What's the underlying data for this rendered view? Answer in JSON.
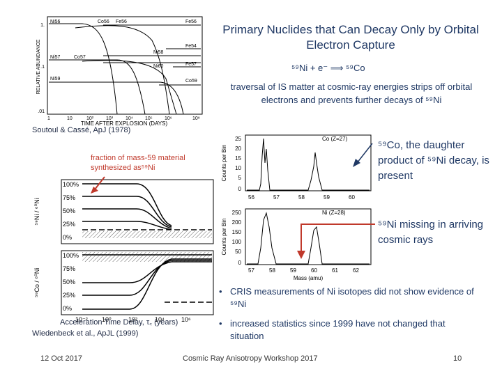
{
  "slide": {
    "title": "Primary Nuclides that Can Decay Only by Orbital Electron Capture",
    "reaction": "⁵⁹Ni + e⁻ ⟹ ⁵⁹Co",
    "description": "traversal of IS matter at cosmic-ray energies strips off orbital electrons and prevents further decays of ⁵⁹Ni",
    "ref_top": "Soutoul & Cassé, ApJ (1978)",
    "fraction_note": "fraction of mass-59 material synthesized as⁵⁹Ni",
    "co_note": "⁵⁹Co, the daughter product of ⁵⁹Ni decay, is present",
    "ni_note": "⁵⁹Ni missing in arriving cosmic rays",
    "bullets": [
      "CRIS measurements of Ni isotopes did not show evidence of ⁵⁹Ni",
      "increased statistics since 1999 have not changed that situation"
    ],
    "ref_bottom": "Wiedenbeck et al., ApJL (1999)",
    "footer": {
      "date": "12 Oct 2017",
      "event": "Cosmic Ray Anisotropy Workshop 2017",
      "page": "10"
    }
  },
  "abundance_plot": {
    "ylabel": "RELATIVE ABUNDANCE",
    "xlabel": "TIME AFTER EXPLOSION (DAYS)",
    "yticks": [
      "1.",
      ".1",
      ".01"
    ],
    "xticks": [
      "1",
      "10",
      "10²",
      "10³",
      "10⁴",
      "10⁵",
      "10⁶",
      "10⁸"
    ],
    "labels": [
      "Ni56",
      "Co56",
      "Fe56",
      "Fe54",
      "Ni57",
      "Co57",
      "Ni58",
      "Ni60",
      "Fe57",
      "Ni59",
      "Co59"
    ]
  },
  "delay_plot": {
    "xlabel": "Acceleration Time Delay, τ꜀ (years)",
    "ylabel_top": "⁵⁹Ni / ⁶⁰Ni",
    "ylabel_bottom": "⁵⁹Co / ⁶⁰Ni",
    "pct_labels": [
      "100%",
      "75%",
      "50%",
      "25%",
      "0%",
      "100%",
      "75%",
      "50%",
      "25%",
      "0%"
    ],
    "xticks": [
      "10⁻²",
      "10⁰",
      "10²",
      "10⁴",
      "10⁶"
    ]
  },
  "co_hist": {
    "ylabel": "Counts per Bin",
    "tag": "Co (Z=27)",
    "yticks": [
      "25",
      "20",
      "15",
      "10",
      "5",
      "0"
    ],
    "xticks": [
      "56",
      "57",
      "58",
      "59",
      "60"
    ]
  },
  "ni_hist": {
    "ylabel": "Counts per Bin",
    "tag": "Ni (Z=28)",
    "xlabel": "Mass (amu)",
    "yticks": [
      "250",
      "200",
      "150",
      "100",
      "50",
      "0"
    ],
    "xticks": [
      "57",
      "58",
      "59",
      "60",
      "61",
      "62"
    ]
  },
  "colors": {
    "accent": "#1f3864",
    "arrow": "#c0392b"
  }
}
